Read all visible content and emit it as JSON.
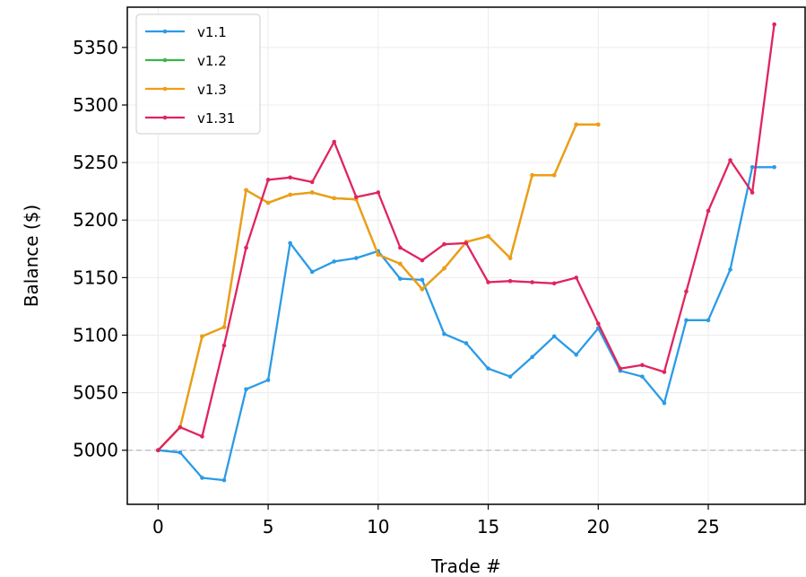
{
  "chart_data": {
    "type": "line",
    "xlabel": "Trade #",
    "ylabel": "Balance ($)",
    "xlim": [
      -1.4,
      29.4
    ],
    "ylim": [
      4953,
      5385
    ],
    "xticks": [
      0,
      5,
      10,
      15,
      20,
      25
    ],
    "yticks": [
      5000,
      5050,
      5100,
      5150,
      5200,
      5250,
      5300,
      5350
    ],
    "grid": true,
    "legend_position": "top-left",
    "reference_line": {
      "y": 5000,
      "style": "dashed",
      "color": "#bbbbbb"
    },
    "series": [
      {
        "name": "v1.1",
        "color": "#2b9be6",
        "x": [
          0,
          1,
          2,
          3,
          4,
          5,
          6,
          7,
          8,
          9,
          10,
          11,
          12,
          13,
          14,
          15,
          16,
          17,
          18,
          19,
          20,
          21,
          22,
          23,
          24,
          25,
          26,
          27,
          28
        ],
        "y": [
          5000,
          4998,
          4976,
          4974,
          5053,
          5061,
          5180,
          5155,
          5164,
          5167,
          5173,
          5149,
          5148,
          5101,
          5093,
          5071,
          5064,
          5081,
          5099,
          5083,
          5106,
          5069,
          5064,
          5041,
          5113,
          5113,
          5157,
          5246,
          5246
        ]
      },
      {
        "name": "v1.2",
        "color": "#3cb44b",
        "x": [
          0,
          1,
          2,
          3,
          4,
          5,
          6,
          7,
          8,
          9,
          10,
          11,
          12,
          13,
          14,
          15,
          16,
          17,
          18,
          19,
          20
        ],
        "y": [
          5000,
          5020,
          5099,
          5107,
          5226,
          5215,
          5222,
          5224,
          5219,
          5218,
          5170,
          5162,
          5140,
          5158,
          5181,
          5186,
          5167,
          5239,
          5239,
          5283,
          5283
        ]
      },
      {
        "name": "v1.3",
        "color": "#f39c12",
        "x": [
          0,
          1,
          2,
          3,
          4,
          5,
          6,
          7,
          8,
          9,
          10,
          11,
          12,
          13,
          14,
          15,
          16,
          17,
          18,
          19,
          20
        ],
        "y": [
          5000,
          5020,
          5099,
          5107,
          5226,
          5215,
          5222,
          5224,
          5219,
          5218,
          5170,
          5162,
          5140,
          5158,
          5181,
          5186,
          5167,
          5239,
          5239,
          5283,
          5283
        ]
      },
      {
        "name": "v1.31",
        "color": "#e0245e",
        "x": [
          0,
          1,
          2,
          3,
          4,
          5,
          6,
          7,
          8,
          9,
          10,
          11,
          12,
          13,
          14,
          15,
          16,
          17,
          18,
          19,
          20,
          21,
          22,
          23,
          24,
          25,
          26,
          27,
          28
        ],
        "y": [
          5000,
          5020,
          5012,
          5091,
          5176,
          5235,
          5237,
          5233,
          5268,
          5220,
          5224,
          5176,
          5165,
          5179,
          5180,
          5146,
          5147,
          5146,
          5145,
          5150,
          5110,
          5071,
          5074,
          5068,
          5138,
          5208,
          5252,
          5224,
          5370
        ]
      }
    ]
  }
}
